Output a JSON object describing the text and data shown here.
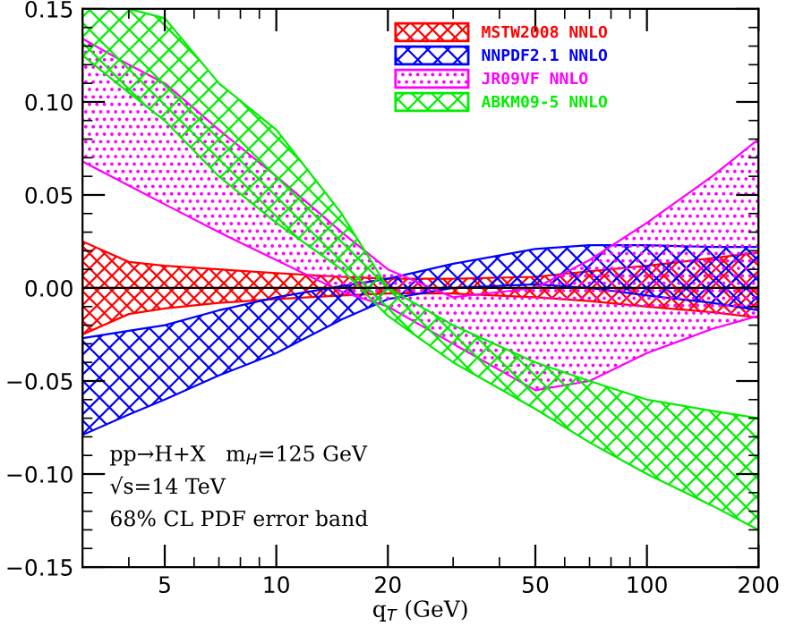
{
  "chart_data": {
    "type": "area",
    "xlabel": "q$_{T}$ (GeV)",
    "x": [
      3,
      4,
      5,
      7,
      10,
      15,
      20,
      30,
      50,
      70,
      100,
      150,
      200
    ],
    "series": [
      {
        "name": "MSTW2008 NNLO",
        "color": "#ff0000",
        "values": [
          null,
          null,
          null,
          null,
          null,
          null,
          null,
          null,
          null,
          null,
          null,
          null,
          null
        ],
        "lower": [
          -0.025,
          -0.014,
          -0.011,
          -0.008,
          -0.006,
          -0.004,
          -0.003,
          -0.003,
          -0.005,
          -0.007,
          -0.01,
          -0.013,
          -0.016
        ],
        "upper": [
          0.025,
          0.014,
          0.012,
          0.01,
          0.008,
          0.006,
          0.005,
          0.005,
          0.006,
          0.009,
          0.012,
          0.016,
          0.019
        ]
      },
      {
        "name": "NNPDF2.1 NNLO",
        "color": "#0000ff",
        "values": [
          null,
          null,
          null,
          null,
          null,
          null,
          null,
          null,
          null,
          null,
          null,
          null,
          null
        ],
        "lower": [
          -0.079,
          -0.068,
          -0.06,
          -0.047,
          -0.035,
          -0.017,
          -0.006,
          0.0,
          0.002,
          0.0,
          -0.004,
          -0.008,
          -0.012
        ],
        "upper": [
          -0.027,
          -0.023,
          -0.02,
          -0.012,
          -0.005,
          0.001,
          0.005,
          0.013,
          0.021,
          0.023,
          0.023,
          0.022,
          0.022
        ]
      },
      {
        "name": "JR09VF NNLO",
        "color": "#ff00ff",
        "values": [
          null,
          null,
          null,
          null,
          null,
          null,
          null,
          null,
          null,
          null,
          null,
          null,
          null
        ],
        "lower": [
          0.068,
          0.055,
          0.045,
          0.03,
          0.015,
          -0.002,
          -0.01,
          -0.03,
          -0.055,
          -0.05,
          -0.035,
          -0.022,
          -0.015
        ],
        "upper": [
          0.134,
          0.12,
          0.11,
          0.085,
          0.06,
          0.03,
          0.01,
          -0.005,
          0.0,
          0.015,
          0.035,
          0.06,
          0.08
        ]
      },
      {
        "name": "ABKM09-5 NNLO",
        "color": "#00ee00",
        "values": [
          null,
          null,
          null,
          null,
          null,
          null,
          null,
          null,
          null,
          null,
          null,
          null,
          null
        ],
        "lower": [
          0.125,
          0.105,
          0.09,
          0.06,
          0.035,
          0.01,
          -0.015,
          -0.04,
          -0.065,
          -0.083,
          -0.1,
          -0.117,
          -0.13
        ],
        "upper": [
          0.15,
          0.15,
          0.145,
          0.11,
          0.085,
          0.04,
          0.0,
          -0.02,
          -0.04,
          -0.05,
          -0.06,
          -0.066,
          -0.07
        ]
      }
    ],
    "log": "x",
    "xlim": [
      3,
      200
    ],
    "xticks": [
      5,
      10,
      20,
      50,
      100,
      200
    ],
    "ylim": [
      -0.15,
      0.15
    ],
    "yticks": [
      {
        "value": -0.15,
        "label": "−0.15"
      },
      {
        "value": -0.1,
        "label": "−0.10"
      },
      {
        "value": -0.05,
        "label": "−0.05"
      },
      {
        "value": 0,
        "label": "0.00"
      },
      {
        "value": 0.05,
        "label": "0.05"
      },
      {
        "value": 0.1,
        "label": "0.10"
      },
      {
        "value": 0.15,
        "label": "0.15"
      }
    ],
    "ref_lines": [
      {
        "axis": "y",
        "value": 0,
        "color": "#000000"
      }
    ],
    "annotations": [
      "pp→H+X   m$_{H}$=125 GeV",
      "√s=14 TeV",
      "68% CL PDF error band"
    ],
    "legend": "top",
    "grid": false
  }
}
